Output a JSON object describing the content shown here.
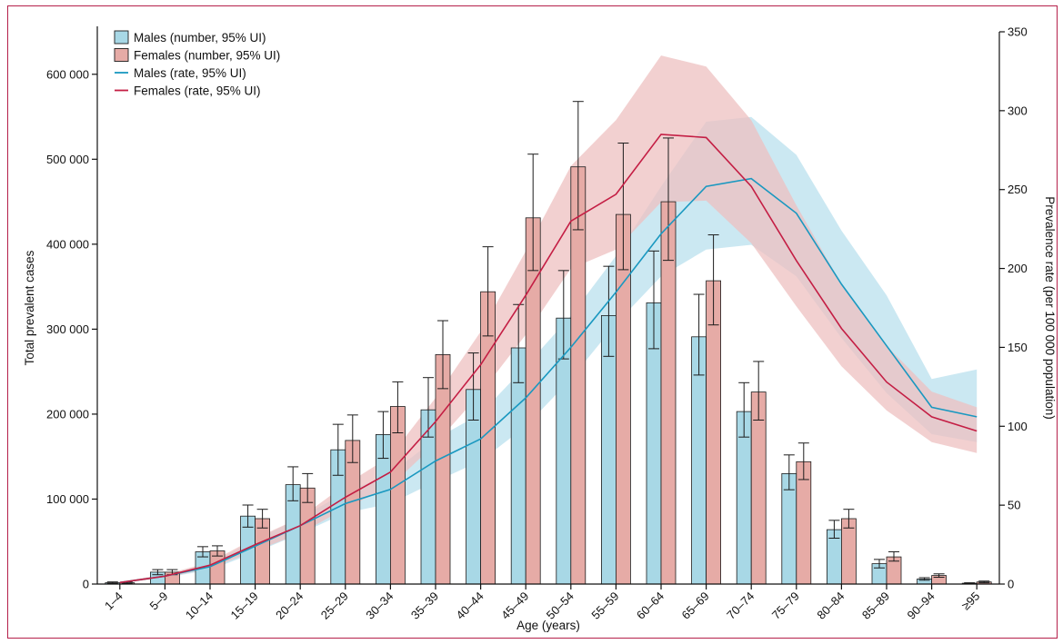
{
  "chart_data": {
    "type": "bar",
    "xlabel": "Age (years)",
    "ylabel": "Total prevalent cases",
    "y2label": "Prevalence rate (per 100 000 population)",
    "ylim": [
      0,
      650000
    ],
    "y2lim": [
      0,
      350
    ],
    "yticks": [
      0,
      100000,
      200000,
      300000,
      400000,
      500000,
      600000
    ],
    "ytick_labels": [
      "0",
      "100 000",
      "200 000",
      "300 000",
      "400 000",
      "500 000",
      "600 000"
    ],
    "y2ticks": [
      0,
      50,
      100,
      150,
      200,
      250,
      300,
      350
    ],
    "y2tick_labels": [
      "0",
      "50",
      "100",
      "150",
      "200",
      "250",
      "300",
      "350"
    ],
    "categories": [
      "1–4",
      "5–9",
      "10–14",
      "15–19",
      "20–24",
      "25–29",
      "30–34",
      "35–39",
      "40–44",
      "45–49",
      "50–54",
      "55–59",
      "60–64",
      "65–69",
      "70–74",
      "75–79",
      "80–84",
      "85–89",
      "90–94",
      "≥95"
    ],
    "legend_position": "top-left",
    "series": [
      {
        "name": "Males (number, 95% UI)",
        "kind": "bar",
        "axis": "left",
        "color": "#a8d8e6",
        "values": [
          1500,
          14000,
          38000,
          80000,
          117000,
          158000,
          176000,
          205000,
          229000,
          278000,
          313000,
          316000,
          331000,
          291000,
          203000,
          130000,
          64000,
          24000,
          6000,
          1000
        ],
        "lower": [
          1000,
          11000,
          32000,
          67000,
          98000,
          128000,
          148000,
          173000,
          193000,
          237000,
          265000,
          268000,
          277000,
          246000,
          173000,
          111000,
          54000,
          19000,
          4500,
          500
        ],
        "upper": [
          2500,
          17000,
          44000,
          93000,
          138000,
          188000,
          203000,
          243000,
          272000,
          329000,
          369000,
          374000,
          392000,
          341000,
          237000,
          152000,
          75000,
          29000,
          7500,
          1500
        ]
      },
      {
        "name": "Females (number, 95% UI)",
        "kind": "bar",
        "axis": "left",
        "color": "#e6aba6",
        "values": [
          1500,
          14000,
          39000,
          77000,
          113000,
          169000,
          209000,
          270000,
          344000,
          431000,
          491000,
          435000,
          450000,
          357000,
          226000,
          144000,
          77000,
          32000,
          10000,
          2500
        ],
        "lower": [
          1000,
          11000,
          33000,
          66000,
          96000,
          143000,
          178000,
          230000,
          292000,
          369000,
          417000,
          370000,
          381000,
          305000,
          193000,
          123000,
          66000,
          27000,
          8000,
          1500
        ],
        "upper": [
          2500,
          17000,
          45000,
          88000,
          130000,
          199000,
          238000,
          310000,
          397000,
          506000,
          568000,
          519000,
          525000,
          411000,
          262000,
          166000,
          88000,
          38000,
          12000,
          3500
        ]
      },
      {
        "name": "Males (rate, 95% UI)",
        "kind": "line",
        "axis": "right",
        "color": "#1a98c0",
        "band_color": "#c5e6f1",
        "values": [
          1,
          5,
          11,
          24,
          37,
          51,
          60,
          78,
          92,
          118,
          150,
          185,
          222,
          252,
          257,
          235,
          190,
          151,
          112,
          106
        ],
        "lower": [
          0.5,
          4,
          9,
          20,
          32,
          45,
          51,
          65,
          78,
          100,
          130,
          165,
          195,
          212,
          215,
          195,
          156,
          121,
          95,
          90
        ],
        "upper": [
          1.5,
          6,
          13,
          28,
          42,
          58,
          70,
          92,
          108,
          138,
          170,
          208,
          252,
          293,
          296,
          272,
          224,
          183,
          130,
          136
        ]
      },
      {
        "name": "Females (rate, 95% UI)",
        "kind": "line",
        "axis": "right",
        "color": "#c41e44",
        "band_color": "#eec0c0",
        "values": [
          1,
          5,
          12,
          25,
          37,
          55,
          71,
          103,
          139,
          183,
          230,
          247,
          285,
          283,
          252,
          205,
          162,
          128,
          106,
          97
        ],
        "lower": [
          0.5,
          4,
          10,
          21,
          32,
          48,
          62,
          89,
          121,
          158,
          200,
          212,
          242,
          243,
          216,
          176,
          138,
          110,
          90,
          83
        ],
        "upper": [
          1.5,
          6,
          14,
          29,
          42,
          63,
          81,
          118,
          160,
          211,
          265,
          294,
          335,
          328,
          294,
          240,
          190,
          151,
          122,
          112
        ]
      }
    ]
  }
}
